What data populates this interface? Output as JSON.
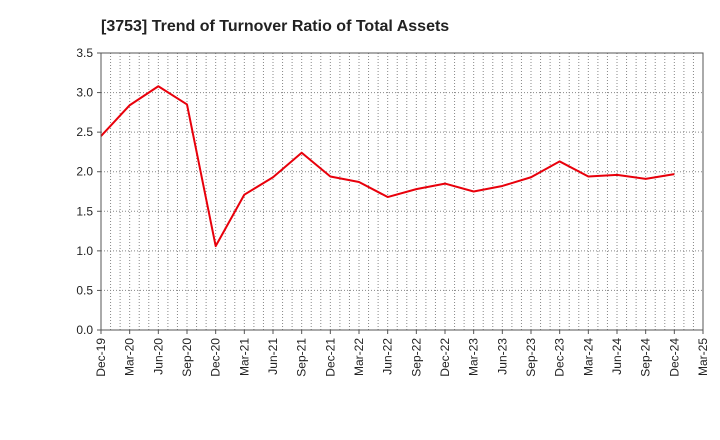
{
  "chart_data": {
    "type": "line",
    "title": "[3753]  Trend of Turnover Ratio of Total Assets",
    "xlabel": "",
    "ylabel": "",
    "ylim": [
      0,
      3.5
    ],
    "yticks": [
      "0.0",
      "0.5",
      "1.0",
      "1.5",
      "2.0",
      "2.5",
      "3.0",
      "3.5"
    ],
    "xtick_labels": [
      "Dec-19",
      "Mar-20",
      "Jun-20",
      "Sep-20",
      "Dec-20",
      "Mar-21",
      "Jun-21",
      "Sep-21",
      "Dec-21",
      "Mar-22",
      "Jun-22",
      "Sep-22",
      "Dec-22",
      "Mar-23",
      "Jun-23",
      "Sep-23",
      "Dec-23",
      "Mar-24",
      "Jun-24",
      "Sep-24",
      "Dec-24",
      "Mar-25"
    ],
    "grid": true,
    "series": [
      {
        "color": "#e8000b",
        "x": [
          "Dec-19",
          "Mar-20",
          "Jun-20",
          "Sep-20",
          "Dec-20",
          "Mar-21",
          "Jun-21",
          "Sep-21",
          "Dec-21",
          "Mar-22",
          "Jun-22",
          "Sep-22",
          "Dec-22",
          "Mar-23",
          "Jun-23",
          "Sep-23",
          "Dec-23",
          "Mar-24",
          "Jun-24",
          "Sep-24",
          "Dec-24"
        ],
        "values": [
          2.45,
          2.84,
          3.08,
          2.85,
          1.06,
          1.71,
          1.93,
          2.24,
          1.94,
          1.87,
          1.68,
          1.78,
          1.85,
          1.75,
          1.82,
          1.93,
          2.13,
          1.94,
          1.96,
          1.91,
          1.97
        ]
      }
    ]
  }
}
